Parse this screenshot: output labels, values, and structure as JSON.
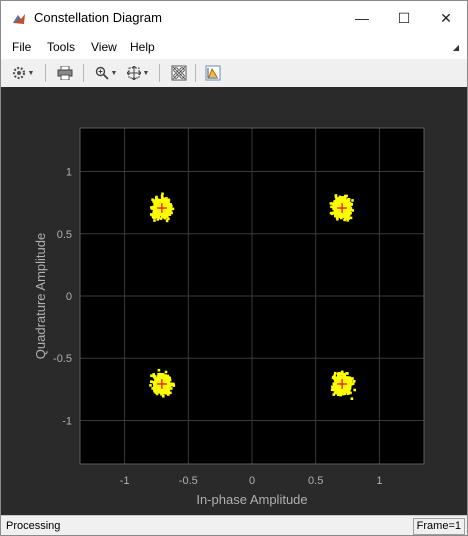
{
  "window": {
    "title": "Constellation Diagram",
    "controls": {
      "minimize": "—",
      "maximize": "☐",
      "close": "✕"
    }
  },
  "menu": {
    "items": [
      {
        "label": "File"
      },
      {
        "label": "Tools"
      },
      {
        "label": "View"
      },
      {
        "label": "Help"
      }
    ]
  },
  "toolbar": {
    "buttons": [
      {
        "icon": "settings-gear-icon"
      },
      {
        "icon": "print-icon"
      },
      {
        "icon": "zoom-in-icon"
      },
      {
        "icon": "scale-axes-icon"
      },
      {
        "icon": "reference-constellation-icon"
      },
      {
        "icon": "signal-scope-icon"
      }
    ]
  },
  "colors": {
    "figure_bg": "#2a2a2a",
    "axes_bg": "#000000",
    "points": "#ffff00",
    "reference": "#ff0000",
    "axis_text": "#b0b0b0",
    "grid": "#3a3a3a"
  },
  "chart_data": {
    "type": "scatter",
    "title": "",
    "xlabel": "In-phase Amplitude",
    "ylabel": "Quadrature Amplitude",
    "xlim": [
      -1.35,
      1.35
    ],
    "ylim": [
      -1.35,
      1.35
    ],
    "xticks": [
      -1,
      -0.5,
      0,
      0.5,
      1
    ],
    "yticks": [
      -1,
      -0.5,
      0,
      0.5,
      1
    ],
    "xtick_labels": [
      "-1",
      "-0.5",
      "0",
      "0.5",
      "1"
    ],
    "ytick_labels": [
      "-1",
      "-0.5",
      "0",
      "0.5",
      "1"
    ],
    "grid": true,
    "series": [
      {
        "name": "",
        "kind": "received-symbols-cluster",
        "points": [
          {
            "x": 0.707,
            "y": 0.707
          },
          {
            "x": -0.707,
            "y": 0.707
          },
          {
            "x": -0.707,
            "y": -0.707
          },
          {
            "x": 0.707,
            "y": -0.707
          }
        ],
        "spread": 0.06
      },
      {
        "name": "",
        "kind": "reference-constellation",
        "marker": "+",
        "points": [
          {
            "x": -0.707,
            "y": 0.707
          },
          {
            "x": 0.707,
            "y": 0.707
          },
          {
            "x": -0.707,
            "y": -0.707
          },
          {
            "x": 0.707,
            "y": -0.707
          }
        ]
      }
    ]
  },
  "status": {
    "text": "Processing",
    "frame": "Frame=1"
  }
}
